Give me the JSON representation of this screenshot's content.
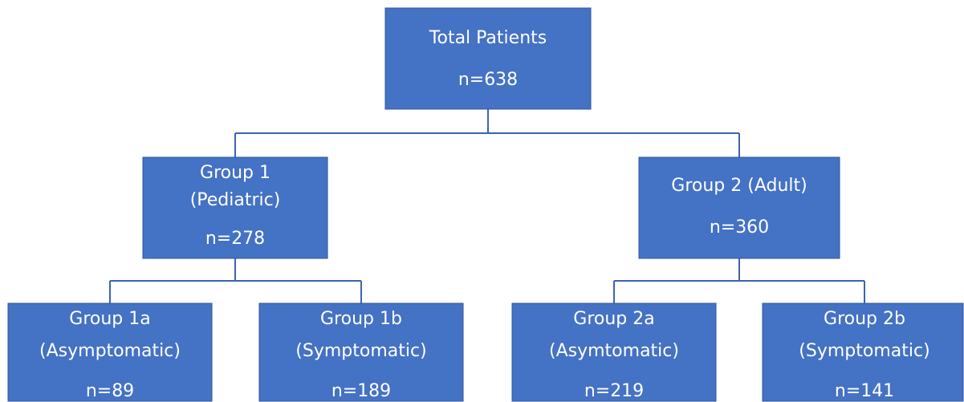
{
  "nodes": [
    {
      "lines": [
        "Total Patients",
        "n=638"
      ]
    },
    {
      "lines": [
        "Group 1",
        "(Pediatric)",
        "n=278"
      ]
    },
    {
      "lines": [
        "Group 2 (Adult)",
        "n=360"
      ]
    },
    {
      "lines": [
        "Group 1a",
        "(Asymptomatic)",
        "n=89"
      ]
    },
    {
      "lines": [
        "Group 1b",
        "(Symptomatic)",
        "n=189"
      ]
    },
    {
      "lines": [
        "Group 2a",
        "(Asymtomatic)",
        "n=219"
      ]
    },
    {
      "lines": [
        "Group 2b",
        "(Symptomatic)",
        "n=141"
      ]
    }
  ]
}
